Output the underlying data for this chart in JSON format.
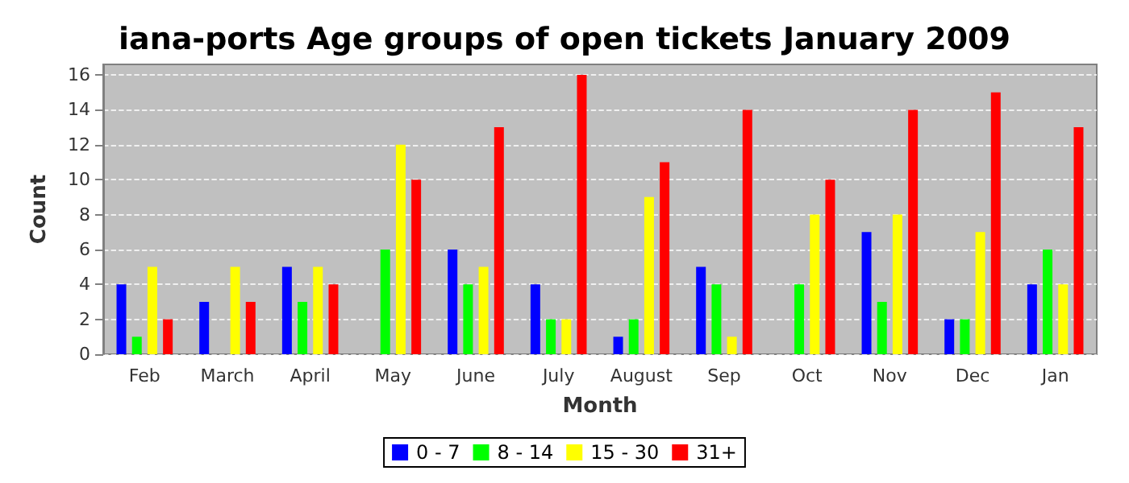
{
  "chart_data": {
    "type": "bar",
    "title": "iana-ports Age groups of open tickets January 2009",
    "xlabel": "Month",
    "ylabel": "Count",
    "categories": [
      "Feb",
      "March",
      "April",
      "May",
      "June",
      "July",
      "August",
      "Sep",
      "Oct",
      "Nov",
      "Dec",
      "Jan"
    ],
    "series": [
      {
        "name": "0 - 7",
        "color": "#0000ff",
        "values": [
          4,
          3,
          5,
          0,
          6,
          4,
          1,
          5,
          0,
          7,
          2,
          4
        ]
      },
      {
        "name": "8 - 14",
        "color": "#00ff00",
        "values": [
          1,
          0,
          3,
          6,
          4,
          2,
          2,
          4,
          4,
          3,
          2,
          6
        ]
      },
      {
        "name": "15 - 30",
        "color": "#ffff00",
        "values": [
          5,
          5,
          5,
          12,
          5,
          2,
          9,
          1,
          8,
          8,
          7,
          4
        ]
      },
      {
        "name": "31+",
        "color": "#ff0000",
        "values": [
          2,
          3,
          4,
          10,
          13,
          16,
          11,
          14,
          10,
          14,
          15,
          13
        ]
      }
    ],
    "ylim": [
      0,
      16.6
    ],
    "yticks": [
      0,
      2,
      4,
      6,
      8,
      10,
      12,
      14,
      16
    ],
    "grid": "y",
    "legend": "bottom"
  }
}
